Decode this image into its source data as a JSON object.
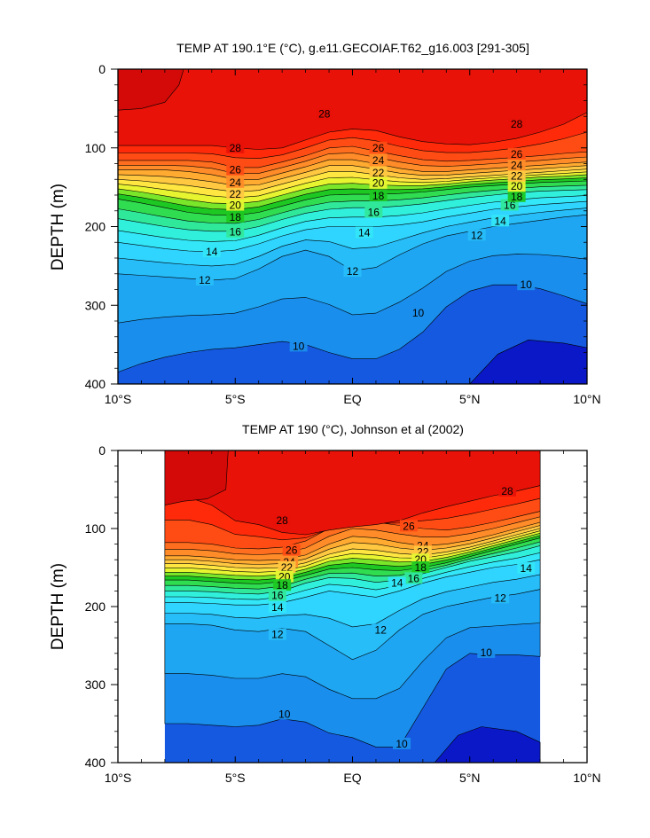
{
  "chart_data": [
    {
      "type": "heatmap",
      "subtype": "filled-contour depth-latitude section",
      "title": "TEMP AT 190.1°E (°C), g.e11.GECOIAF.T62_g16.003 [291-305]",
      "ylabel": "DEPTH (m)",
      "xlabel": "",
      "x_ticks": [
        "10°S",
        "5°S",
        "EQ",
        "5°N",
        "10°N"
      ],
      "x_tick_values": [
        -10,
        -5,
        0,
        5,
        10
      ],
      "y_ticks": [
        "0",
        "100",
        "200",
        "300",
        "400"
      ],
      "y_tick_values": [
        0,
        100,
        200,
        300,
        400
      ],
      "xlim": [
        -10,
        10
      ],
      "ylim": [
        400,
        0
      ],
      "lat_coverage": [
        -10,
        10
      ],
      "contour_levels": [
        10,
        11,
        12,
        13,
        14,
        15,
        16,
        17,
        18,
        19,
        20,
        21,
        22,
        23,
        24,
        25,
        26,
        27,
        28
      ],
      "contour_labels": [
        {
          "text": "28",
          "lat": -5.0,
          "depth": 100
        },
        {
          "text": "26",
          "lat": -5.0,
          "depth": 128
        },
        {
          "text": "24",
          "lat": -5.0,
          "depth": 144
        },
        {
          "text": "22",
          "lat": -5.0,
          "depth": 159
        },
        {
          "text": "20",
          "lat": -5.0,
          "depth": 173
        },
        {
          "text": "18",
          "lat": -5.0,
          "depth": 188
        },
        {
          "text": "16",
          "lat": -5.0,
          "depth": 207
        },
        {
          "text": "14",
          "lat": -6.0,
          "depth": 232
        },
        {
          "text": "12",
          "lat": -6.3,
          "depth": 268
        },
        {
          "text": "10",
          "lat": -2.3,
          "depth": 352
        },
        {
          "text": "28",
          "lat": -1.2,
          "depth": 57
        },
        {
          "text": "26",
          "lat": 1.1,
          "depth": 100
        },
        {
          "text": "24",
          "lat": 1.1,
          "depth": 116
        },
        {
          "text": "22",
          "lat": 1.1,
          "depth": 132
        },
        {
          "text": "20",
          "lat": 1.1,
          "depth": 145
        },
        {
          "text": "18",
          "lat": 1.1,
          "depth": 161
        },
        {
          "text": "16",
          "lat": 0.9,
          "depth": 182
        },
        {
          "text": "14",
          "lat": 0.5,
          "depth": 208
        },
        {
          "text": "12",
          "lat": 0.0,
          "depth": 257
        },
        {
          "text": "10",
          "lat": 2.8,
          "depth": 310
        },
        {
          "text": "12",
          "lat": 5.3,
          "depth": 211
        },
        {
          "text": "14",
          "lat": 6.3,
          "depth": 193
        },
        {
          "text": "16",
          "lat": 6.7,
          "depth": 173
        },
        {
          "text": "18",
          "lat": 7.0,
          "depth": 162
        },
        {
          "text": "20",
          "lat": 7.0,
          "depth": 149
        },
        {
          "text": "22",
          "lat": 7.0,
          "depth": 136
        },
        {
          "text": "24",
          "lat": 7.0,
          "depth": 122
        },
        {
          "text": "26",
          "lat": 7.0,
          "depth": 108
        },
        {
          "text": "28",
          "lat": 7.0,
          "depth": 70
        },
        {
          "text": "10",
          "lat": 7.4,
          "depth": 274
        }
      ]
    },
    {
      "type": "heatmap",
      "subtype": "filled-contour depth-latitude section",
      "title": "TEMP AT 190 (°C), Johnson et al (2002)",
      "ylabel": "DEPTH (m)",
      "xlabel": "",
      "x_ticks": [
        "10°S",
        "5°S",
        "EQ",
        "5°N",
        "10°N"
      ],
      "x_tick_values": [
        -10,
        -5,
        0,
        5,
        10
      ],
      "y_ticks": [
        "0",
        "100",
        "200",
        "300",
        "400"
      ],
      "y_tick_values": [
        0,
        100,
        200,
        300,
        400
      ],
      "xlim": [
        -10,
        10
      ],
      "ylim": [
        400,
        0
      ],
      "lat_coverage": [
        -8,
        8
      ],
      "contour_levels": [
        10,
        11,
        12,
        13,
        14,
        15,
        16,
        17,
        18,
        19,
        20,
        21,
        22,
        23,
        24,
        25,
        26,
        27,
        28
      ],
      "contour_labels": [
        {
          "text": "28",
          "lat": -3.0,
          "depth": 90
        },
        {
          "text": "26",
          "lat": -2.6,
          "depth": 128
        },
        {
          "text": "24",
          "lat": -2.7,
          "depth": 143
        },
        {
          "text": "22",
          "lat": -2.8,
          "depth": 150
        },
        {
          "text": "20",
          "lat": -2.9,
          "depth": 162
        },
        {
          "text": "18",
          "lat": -3.0,
          "depth": 173
        },
        {
          "text": "16",
          "lat": -3.2,
          "depth": 186
        },
        {
          "text": "14",
          "lat": -3.2,
          "depth": 201
        },
        {
          "text": "12",
          "lat": -3.2,
          "depth": 236
        },
        {
          "text": "10",
          "lat": -2.9,
          "depth": 338
        },
        {
          "text": "26",
          "lat": 2.4,
          "depth": 97
        },
        {
          "text": "24",
          "lat": 3.0,
          "depth": 122
        },
        {
          "text": "22",
          "lat": 3.0,
          "depth": 130
        },
        {
          "text": "20",
          "lat": 2.9,
          "depth": 140
        },
        {
          "text": "18",
          "lat": 2.9,
          "depth": 150
        },
        {
          "text": "16",
          "lat": 2.6,
          "depth": 164
        },
        {
          "text": "14",
          "lat": 1.9,
          "depth": 170
        },
        {
          "text": "12",
          "lat": 1.2,
          "depth": 230
        },
        {
          "text": "10",
          "lat": 2.1,
          "depth": 376
        },
        {
          "text": "28",
          "lat": 6.6,
          "depth": 52
        },
        {
          "text": "14",
          "lat": 7.4,
          "depth": 151
        },
        {
          "text": "12",
          "lat": 6.3,
          "depth": 189
        },
        {
          "text": "10",
          "lat": 5.7,
          "depth": 259
        }
      ]
    }
  ],
  "palette": [
    "#0a18c8",
    "#1559e0",
    "#1a8eec",
    "#1fa6f2",
    "#27bdf9",
    "#2fd4ff",
    "#33e6f8",
    "#30f0dc",
    "#30e89a",
    "#30dc50",
    "#1ec822",
    "#7ae62a",
    "#e6f530",
    "#ffe640",
    "#ffc840",
    "#ffaa30",
    "#ff8c28",
    "#ff6e1e",
    "#ff4c14",
    "#ff2a0a",
    "#e81208",
    "#d40a08"
  ]
}
